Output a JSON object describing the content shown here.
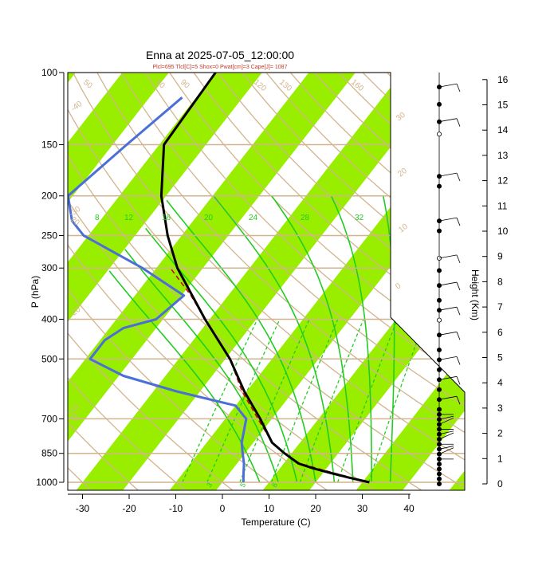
{
  "chart_data": {
    "type": "skew-t",
    "title": "Enna at 2025-07-05_12:00:00",
    "subtitle": "Plcl=695 Tlcl[C]=5 Shox=0 Pwat[cm]=3 Cape[J]= 1087",
    "xlabel": "Temperature (C)",
    "ylabel": "P (hPa)",
    "y2label": "Height (Km)",
    "x_ticks": [
      -30,
      -20,
      -10,
      0,
      10,
      20,
      30,
      40
    ],
    "p_ticks": [
      100,
      150,
      200,
      250,
      300,
      400,
      500,
      700,
      850,
      1000
    ],
    "height_ticks": [
      0,
      1,
      2,
      3,
      4,
      5,
      6,
      7,
      8,
      9,
      10,
      11,
      12,
      13,
      14,
      15,
      16
    ],
    "isotherm_labels": [
      "-40",
      "-30",
      "-20",
      "-10",
      "0",
      "10",
      "20",
      "30"
    ],
    "dry_adiabat_labels": [
      "50",
      "80",
      "90",
      "120",
      "130",
      "160",
      "20",
      "-20"
    ],
    "moist_adiabat_labels": [
      "8",
      "12",
      "16",
      "20",
      "24",
      "28",
      "32"
    ],
    "mixing_ratio_labels": [
      "3",
      "5",
      "6"
    ],
    "colors": {
      "temperature": "#000000",
      "dewpoint": "#4a6fd6",
      "parcel": "#cc0000",
      "isotherm_band": "#99ee00",
      "dry_adiabat": "#d2b48c",
      "moist_adiabat": "#22cc22",
      "mixing_ratio": "#22cc22",
      "wind": "#000000"
    },
    "temperature": [
      {
        "p": 1000,
        "t": 31.5
      },
      {
        "p": 975,
        "t": 26.5
      },
      {
        "p": 950,
        "t": 21.8
      },
      {
        "p": 925,
        "t": 17.2
      },
      {
        "p": 900,
        "t": 13.2
      },
      {
        "p": 850,
        "t": 8.5
      },
      {
        "p": 800,
        "t": 4.0
      },
      {
        "p": 700,
        "t": -2.5
      },
      {
        "p": 600,
        "t": -10.5
      },
      {
        "p": 500,
        "t": -19.0
      },
      {
        "p": 400,
        "t": -31.0
      },
      {
        "p": 300,
        "t": -45.5
      },
      {
        "p": 250,
        "t": -53.0
      },
      {
        "p": 200,
        "t": -61.0
      },
      {
        "p": 150,
        "t": -69.0
      },
      {
        "p": 100,
        "t": -70.0
      }
    ],
    "dewpoint": [
      {
        "p": 1000,
        "t": 4.5
      },
      {
        "p": 950,
        "t": 3.0
      },
      {
        "p": 900,
        "t": 1.5
      },
      {
        "p": 850,
        "t": -0.5
      },
      {
        "p": 800,
        "t": -2.5
      },
      {
        "p": 700,
        "t": -5.5
      },
      {
        "p": 650,
        "t": -10.0
      },
      {
        "p": 600,
        "t": -25.0
      },
      {
        "p": 550,
        "t": -39.0
      },
      {
        "p": 500,
        "t": -49.0
      },
      {
        "p": 450,
        "t": -49.0
      },
      {
        "p": 420,
        "t": -47.0
      },
      {
        "p": 400,
        "t": -41.5
      },
      {
        "p": 350,
        "t": -39.5
      },
      {
        "p": 300,
        "t": -53.0
      },
      {
        "p": 250,
        "t": -71.0
      },
      {
        "p": 230,
        "t": -76.0
      },
      {
        "p": 200,
        "t": -81.0
      },
      {
        "p": 150,
        "t": -77.0
      },
      {
        "p": 115,
        "t": -73.0
      }
    ],
    "parcel": [
      {
        "p": 1000,
        "t": 31.5
      },
      {
        "p": 950,
        "t": 22.5
      },
      {
        "p": 900,
        "t": 13.5
      },
      {
        "p": 850,
        "t": 8.5
      },
      {
        "p": 800,
        "t": 4.0
      },
      {
        "p": 700,
        "t": -3.0
      },
      {
        "p": 600,
        "t": -11.0
      },
      {
        "p": 500,
        "t": -19.0
      },
      {
        "p": 400,
        "t": -31.0
      },
      {
        "p": 350,
        "t": -38.0
      },
      {
        "p": 300,
        "t": -47.0
      }
    ],
    "wind_levels_km": [
      0,
      0.2,
      0.4,
      0.6,
      0.8,
      1.0,
      1.2,
      1.4,
      1.6,
      1.8,
      2.0,
      2.2,
      2.4,
      2.6,
      2.8,
      3.0,
      3.4,
      3.8,
      4.2,
      4.6,
      5.0,
      5.4,
      6.0,
      6.6,
      7.0,
      7.4,
      8.0,
      8.6,
      9.1,
      10.2,
      10.6,
      12.0,
      12.4,
      14.1,
      14.6,
      15.3,
      16.0
    ]
  }
}
